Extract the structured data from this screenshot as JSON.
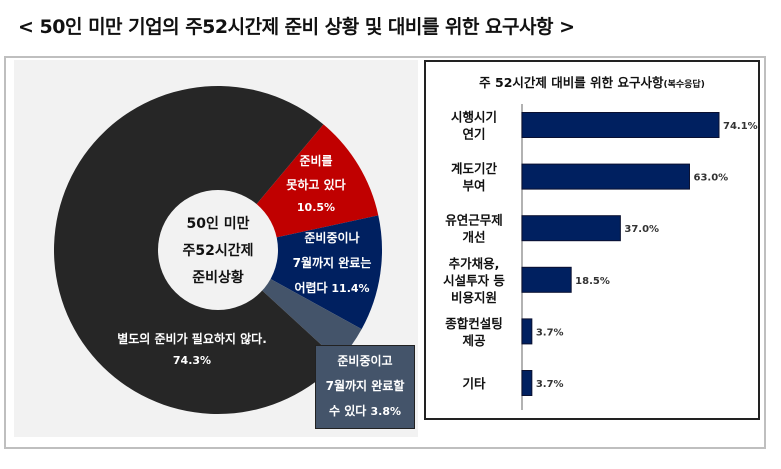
{
  "title": "< 50인 미만 기업의 주52시간제 준비 상황 및 대비를 위한 요구사항 >",
  "chart_data": [
    {
      "type": "pie",
      "title": [
        "50인 미만",
        "주52시간제",
        "준비상황"
      ],
      "slices": [
        {
          "label": [
            "준비를",
            "못하고 있다"
          ],
          "value": 10.5,
          "value_label": "10.5%",
          "color": "#c00000"
        },
        {
          "label": [
            "준비중이나",
            "7월까지 완료는",
            "어렵다"
          ],
          "value": 11.4,
          "value_label": "11.4%",
          "color": "#002060"
        },
        {
          "label": [
            "준비중이고",
            "7월까지 완료할",
            "수 있다"
          ],
          "value": 3.8,
          "value_label": "3.8%",
          "color": "#44546a"
        },
        {
          "label": [
            "별도의 준비가 필요하지 않다."
          ],
          "value": 74.3,
          "value_label": "74.3%",
          "color": "#262626"
        }
      ]
    },
    {
      "type": "bar",
      "orientation": "horizontal",
      "title": "주 52시간제 대비를 위한 요구사항",
      "subtitle": "(복수응답)",
      "categories": [
        [
          "시행시기",
          "연기"
        ],
        [
          "계도기간",
          "부여"
        ],
        [
          "유연근무제",
          "개선"
        ],
        [
          "추가채용,",
          "시설투자 등",
          "비용지원"
        ],
        [
          "종합컨설팅",
          "제공"
        ],
        [
          "기타"
        ]
      ],
      "values": [
        74.1,
        63.0,
        37.0,
        18.5,
        3.7,
        3.7
      ],
      "value_labels": [
        "74.1%",
        "63.0%",
        "37.0%",
        "18.5%",
        "3.7%",
        "3.7%"
      ],
      "color": "#002060",
      "xlim": [
        0,
        80
      ]
    }
  ]
}
